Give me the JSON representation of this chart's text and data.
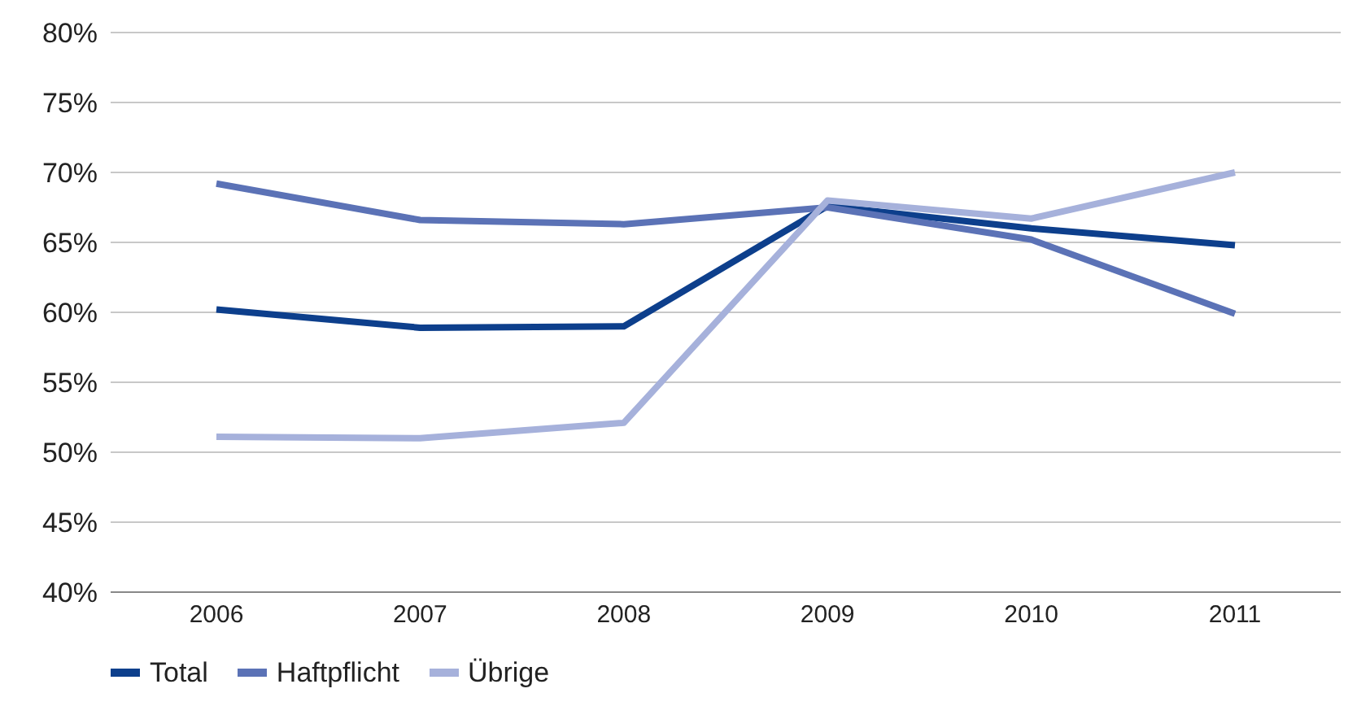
{
  "chart_data": {
    "type": "line",
    "categories": [
      "2006",
      "2007",
      "2008",
      "2009",
      "2010",
      "2011"
    ],
    "series": [
      {
        "name": "Total",
        "color": "#0d3f8c",
        "values": [
          60.2,
          58.9,
          59.0,
          67.6,
          66.0,
          64.8
        ]
      },
      {
        "name": "Haftpflicht",
        "color": "#5b72b6",
        "values": [
          69.2,
          66.6,
          66.3,
          67.5,
          65.2,
          59.9
        ]
      },
      {
        "name": "Übrige",
        "color": "#a6b1db",
        "values": [
          51.1,
          51.0,
          52.1,
          68.0,
          66.7,
          70.0
        ]
      }
    ],
    "ylim": [
      40,
      80
    ],
    "yticks": [
      {
        "value": 40,
        "label": "40%"
      },
      {
        "value": 45,
        "label": "45%"
      },
      {
        "value": 50,
        "label": "50%"
      },
      {
        "value": 55,
        "label": "55%"
      },
      {
        "value": 60,
        "label": "60%"
      },
      {
        "value": 65,
        "label": "65%"
      },
      {
        "value": 70,
        "label": "70%"
      },
      {
        "value": 75,
        "label": "75%"
      },
      {
        "value": 80,
        "label": "80%"
      }
    ],
    "grid": "y",
    "legend": "bottom left",
    "marker": "none",
    "line_style": "solid"
  }
}
